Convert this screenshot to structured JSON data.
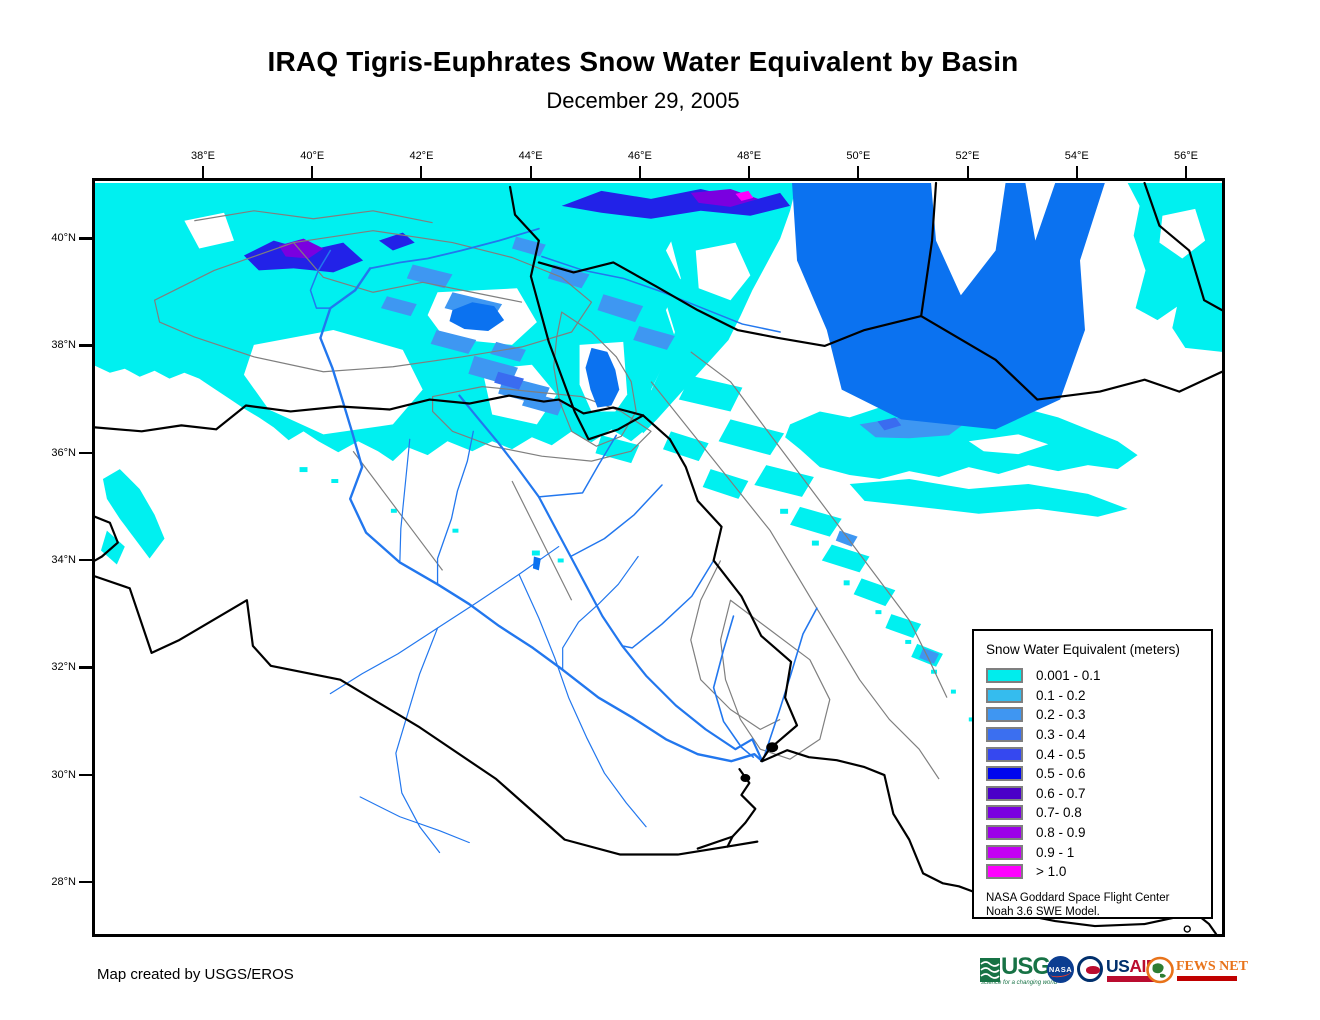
{
  "page": {
    "title": "IRAQ Tigris-Euphrates Snow Water Equivalent by Basin",
    "subtitle": "December 29, 2005",
    "credit": "Map created by USGS/EROS"
  },
  "map": {
    "x_axis": {
      "labels": [
        "38°E",
        "40°E",
        "42°E",
        "44°E",
        "46°E",
        "48°E",
        "50°E",
        "52°E",
        "54°E",
        "56°E"
      ]
    },
    "y_axis": {
      "labels": [
        "40°N",
        "38°N",
        "36°N",
        "34°N",
        "32°N",
        "30°N",
        "28°N"
      ]
    },
    "colors": {
      "snow_light": "#00F0F0",
      "snow_medium": "#3E97F2",
      "snow_deep": "#3A6CF0",
      "snow_navy": "#2222E8",
      "snow_violet": "#7A00E0",
      "snow_magenta": "#FF00FF",
      "water": "#0B72F0",
      "river": "#2277EE",
      "border": "#000000",
      "basin": "#7F7F7F"
    }
  },
  "legend": {
    "title": "Snow Water Equivalent (meters)",
    "items": [
      {
        "label": "0.001 - 0.1",
        "color": "#00EDED"
      },
      {
        "label": "0.1 - 0.2",
        "color": "#35BCEE"
      },
      {
        "label": "0.2 - 0.3",
        "color": "#3F96F2"
      },
      {
        "label": "0.3 - 0.4",
        "color": "#3B6FF0"
      },
      {
        "label": "0.4 - 0.5",
        "color": "#3548F0"
      },
      {
        "label": "0.5 - 0.6",
        "color": "#0005EE"
      },
      {
        "label": "0.6 - 0.7",
        "color": "#4A00C8"
      },
      {
        "label": "0.7- 0.8",
        "color": "#7A00E0"
      },
      {
        "label": "0.8 - 0.9",
        "color": "#9C00E8"
      },
      {
        "label": "0.9 - 1",
        "color": "#C400F4"
      },
      {
        "label": "> 1.0",
        "color": "#FF00FF"
      }
    ],
    "note_line1": "NASA Goddard Space Flight Center",
    "note_line2": "Noah 3.6 SWE Model."
  },
  "logos": {
    "usgs": {
      "wordmark": "USGS",
      "tagline": "science for a changing world",
      "green": "#177245"
    },
    "nasa": {
      "wordmark": "NASA",
      "blue": "#0B3D91",
      "red": "#FC3D21"
    },
    "usaid": {
      "word_us": "US",
      "word_aid": "AID",
      "navy": "#002F6C",
      "red": "#BA0C2F"
    },
    "fewsnet": {
      "wordmark": "FEWS NET",
      "orange": "#E8731A",
      "red": "#C00000",
      "green": "#2E7D32"
    }
  }
}
